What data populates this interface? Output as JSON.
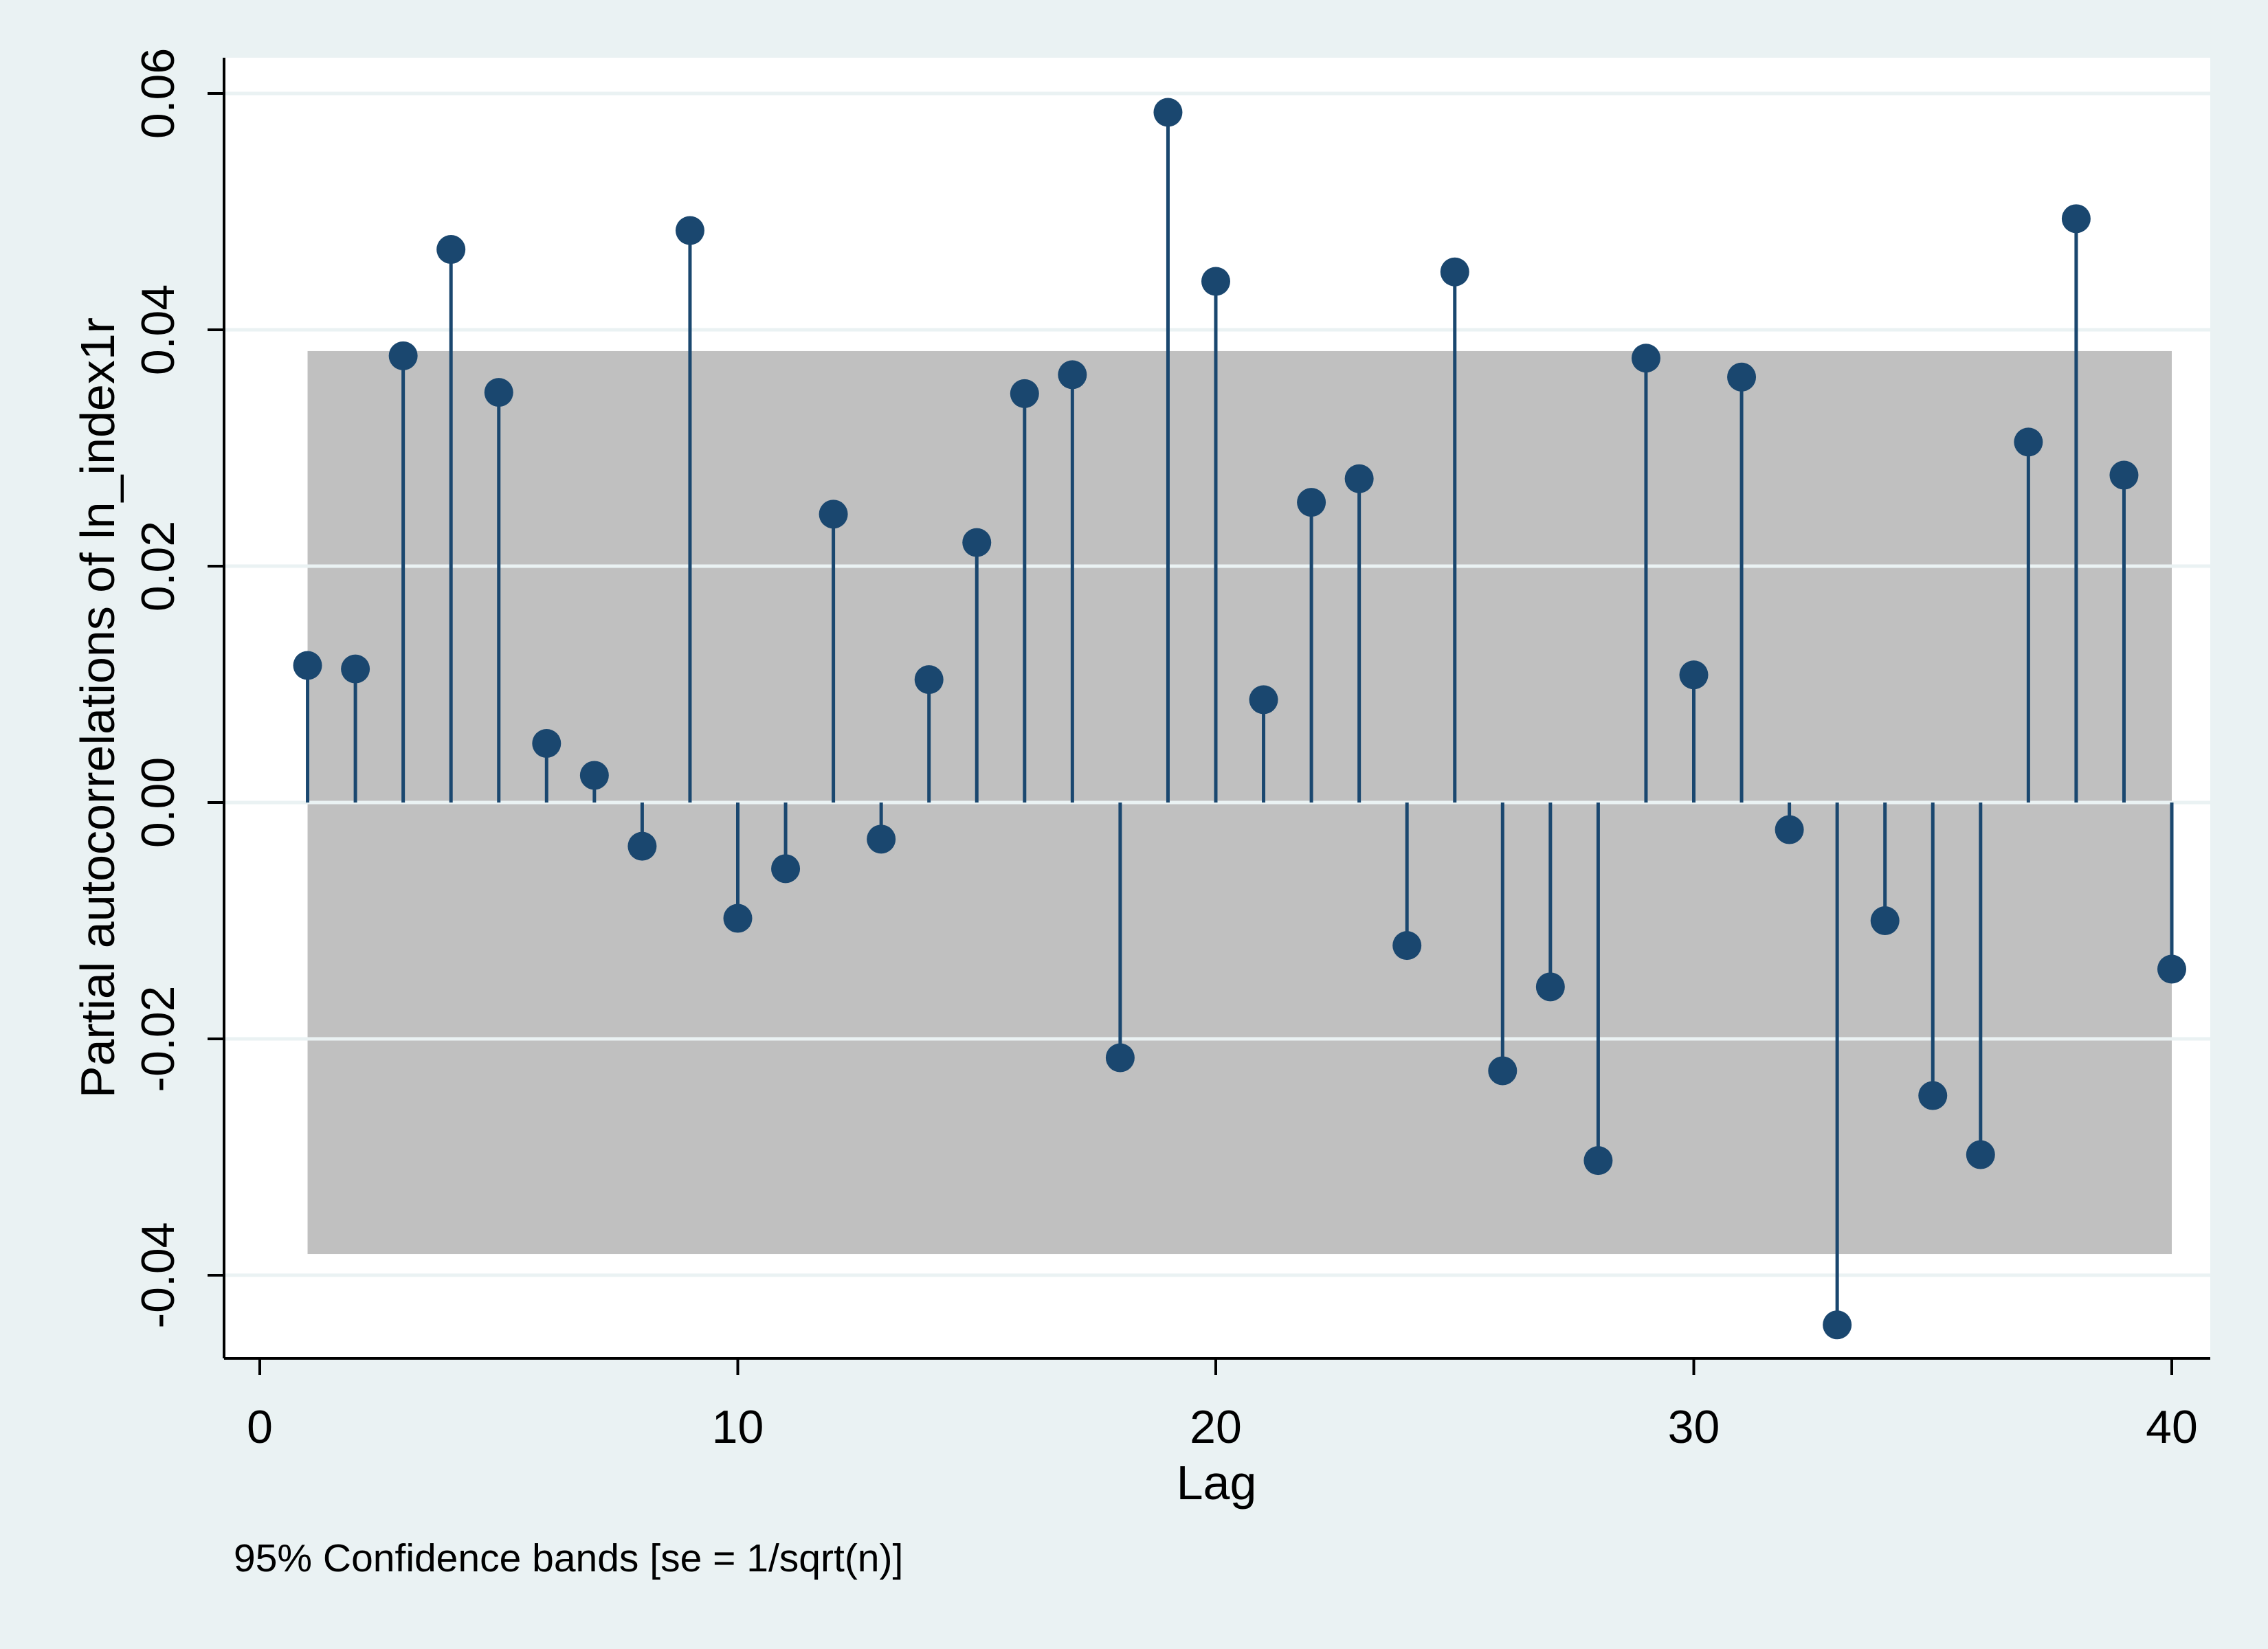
{
  "chart_data": {
    "type": "scatter",
    "style": "spike plot with markers and shaded confidence band",
    "xlabel": "Lag",
    "ylabel": "Partial autocorrelations of ln_index1r",
    "note": "95% Confidence bands [se = 1/sqrt(n)]",
    "xlim": [
      0,
      40
    ],
    "ylim": [
      -0.04,
      0.06
    ],
    "xticks": [
      0,
      10,
      20,
      30,
      40
    ],
    "xtick_labels": [
      "0",
      "10",
      "20",
      "30",
      "40"
    ],
    "yticks": [
      -0.04,
      -0.02,
      0,
      0.02,
      0.04,
      0.06
    ],
    "ytick_labels": [
      "-0.04",
      "-0.02",
      "0.00",
      "0.02",
      "0.04",
      "0.06"
    ],
    "grid": true,
    "legend": "none",
    "confidence_band": {
      "lower": -0.0382,
      "upper": 0.0382
    },
    "series": [
      {
        "x": [
          1,
          2,
          3,
          4,
          5,
          6,
          7,
          8,
          9,
          10,
          11,
          12,
          13,
          14,
          15,
          16,
          17,
          18,
          19,
          20,
          21,
          22,
          23,
          24,
          25,
          26,
          27,
          28,
          29,
          30,
          31,
          32,
          33,
          34,
          35,
          36,
          37,
          38,
          39,
          40
        ],
        "values": [
          0.0116,
          0.0113,
          0.0378,
          0.0468,
          0.0347,
          0.005,
          0.0023,
          -0.0037,
          0.0484,
          -0.0098,
          -0.0056,
          0.0244,
          -0.0031,
          0.0104,
          0.022,
          0.0346,
          0.0362,
          -0.0216,
          0.0584,
          0.0441,
          0.0087,
          0.0254,
          0.0274,
          -0.0121,
          0.0449,
          -0.0227,
          -0.0156,
          -0.0303,
          0.0376,
          0.0108,
          0.036,
          -0.0023,
          -0.0442,
          -0.01,
          -0.0248,
          -0.0298,
          0.0305,
          0.0494,
          0.0277,
          -0.0141
        ]
      }
    ],
    "colors": {
      "outer_background": "#eaf2f3",
      "plot_background": "#ffffff",
      "band": "#c0c0c0",
      "gridline": "#eaf2f3",
      "series": "#1a476f",
      "axis": "#000000"
    }
  }
}
